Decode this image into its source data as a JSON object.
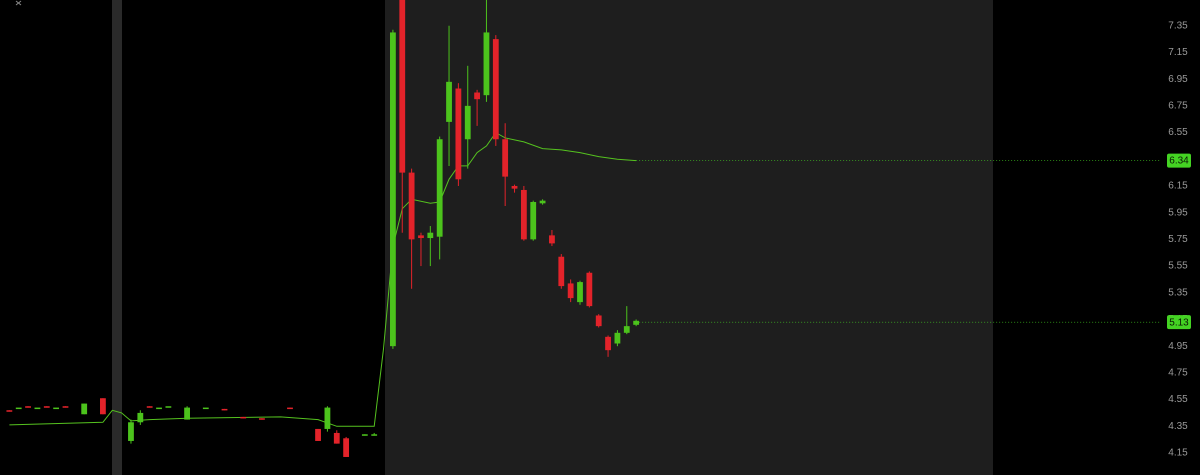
{
  "chart_data": {
    "type": "candlestick",
    "xlim": [
      0,
      124
    ],
    "ylim": [
      3.985,
      7.543
    ],
    "yticks": [
      4.15,
      4.35,
      4.55,
      4.75,
      4.95,
      5.15,
      5.35,
      5.55,
      5.75,
      5.95,
      6.15,
      6.35,
      6.55,
      6.75,
      6.95,
      7.15,
      7.35
    ],
    "up_color": "#4cc31c",
    "down_color": "#e3232a",
    "candles": {
      "x": [
        1,
        2,
        3,
        4,
        5,
        6,
        7,
        9,
        11,
        14,
        15,
        16,
        17,
        18,
        20,
        22,
        24,
        26,
        28,
        31,
        34,
        35,
        36,
        37,
        39,
        40,
        42,
        43,
        44,
        45,
        46,
        47,
        48,
        49,
        50,
        51,
        52,
        53,
        54,
        55,
        56,
        57,
        58,
        59,
        60,
        61,
        62,
        63,
        64,
        65,
        66,
        67,
        68
      ],
      "open": [
        4.47,
        4.49,
        4.5,
        4.49,
        4.5,
        4.49,
        4.5,
        4.44,
        4.56,
        4.24,
        4.38,
        4.5,
        4.49,
        4.5,
        4.4,
        4.49,
        4.48,
        4.42,
        4.41,
        4.49,
        4.33,
        4.33,
        4.3,
        4.26,
        4.29,
        4.29,
        4.95,
        7.6,
        6.25,
        5.78,
        5.76,
        5.77,
        6.63,
        6.88,
        6.5,
        6.85,
        6.83,
        7.25,
        6.5,
        6.15,
        6.12,
        5.75,
        6.02,
        5.78,
        5.62,
        5.42,
        5.28,
        5.5,
        5.18,
        5.02,
        4.97,
        5.05,
        5.11
      ],
      "high": [
        4.47,
        4.49,
        4.5,
        4.49,
        4.5,
        4.49,
        4.5,
        4.52,
        4.56,
        4.4,
        4.47,
        4.5,
        4.49,
        4.5,
        4.5,
        4.49,
        4.48,
        4.42,
        4.41,
        4.49,
        4.33,
        4.5,
        4.32,
        4.27,
        4.29,
        4.3,
        7.32,
        7.62,
        6.28,
        5.8,
        5.85,
        6.52,
        7.35,
        6.92,
        7.05,
        6.87,
        7.55,
        7.28,
        6.62,
        6.16,
        6.15,
        6.04,
        6.05,
        5.82,
        5.64,
        5.45,
        5.44,
        5.51,
        5.19,
        5.03,
        5.07,
        5.25,
        5.15
      ],
      "low": [
        4.46,
        4.49,
        4.49,
        4.49,
        4.49,
        4.49,
        4.49,
        4.44,
        4.44,
        4.22,
        4.36,
        4.49,
        4.49,
        4.5,
        4.4,
        4.49,
        4.47,
        4.41,
        4.4,
        4.48,
        4.24,
        4.31,
        4.22,
        4.12,
        4.28,
        4.28,
        4.93,
        5.8,
        5.38,
        5.55,
        5.55,
        5.6,
        6.3,
        6.15,
        6.28,
        6.6,
        6.78,
        6.45,
        6.0,
        6.1,
        5.74,
        5.74,
        6.01,
        5.7,
        5.38,
        5.28,
        5.26,
        5.24,
        5.09,
        4.87,
        4.95,
        5.04,
        5.1
      ],
      "close": [
        4.46,
        4.49,
        4.49,
        4.49,
        4.49,
        4.49,
        4.49,
        4.52,
        4.44,
        4.38,
        4.45,
        4.49,
        4.49,
        4.5,
        4.49,
        4.49,
        4.47,
        4.41,
        4.4,
        4.48,
        4.24,
        4.49,
        4.22,
        4.12,
        4.29,
        4.29,
        7.3,
        6.25,
        5.75,
        5.76,
        5.8,
        6.5,
        6.93,
        6.2,
        6.75,
        6.8,
        7.3,
        6.5,
        6.22,
        6.13,
        5.75,
        6.03,
        6.04,
        5.72,
        5.4,
        5.31,
        5.43,
        5.25,
        5.1,
        4.92,
        5.05,
        5.1,
        5.14
      ]
    },
    "series": [
      {
        "color": "#55c21f",
        "x": [
          1,
          11,
          12,
          13,
          14,
          16,
          20,
          30,
          34,
          36,
          40,
          41,
          42,
          43,
          44,
          46,
          47,
          48,
          49,
          50,
          51,
          52,
          53,
          54,
          56,
          58,
          60,
          62,
          64,
          66,
          68
        ],
        "values": [
          4.36,
          4.38,
          4.47,
          4.45,
          4.39,
          4.4,
          4.41,
          4.42,
          4.4,
          4.35,
          4.35,
          4.93,
          5.7,
          5.98,
          6.05,
          6.02,
          6.03,
          6.2,
          6.3,
          6.3,
          6.4,
          6.45,
          6.55,
          6.51,
          6.48,
          6.43,
          6.42,
          6.4,
          6.37,
          6.35,
          6.34
        ]
      }
    ],
    "price_markers": [
      {
        "value": 6.34
      },
      {
        "value": 5.13
      }
    ],
    "marker_color": "#44d323"
  }
}
